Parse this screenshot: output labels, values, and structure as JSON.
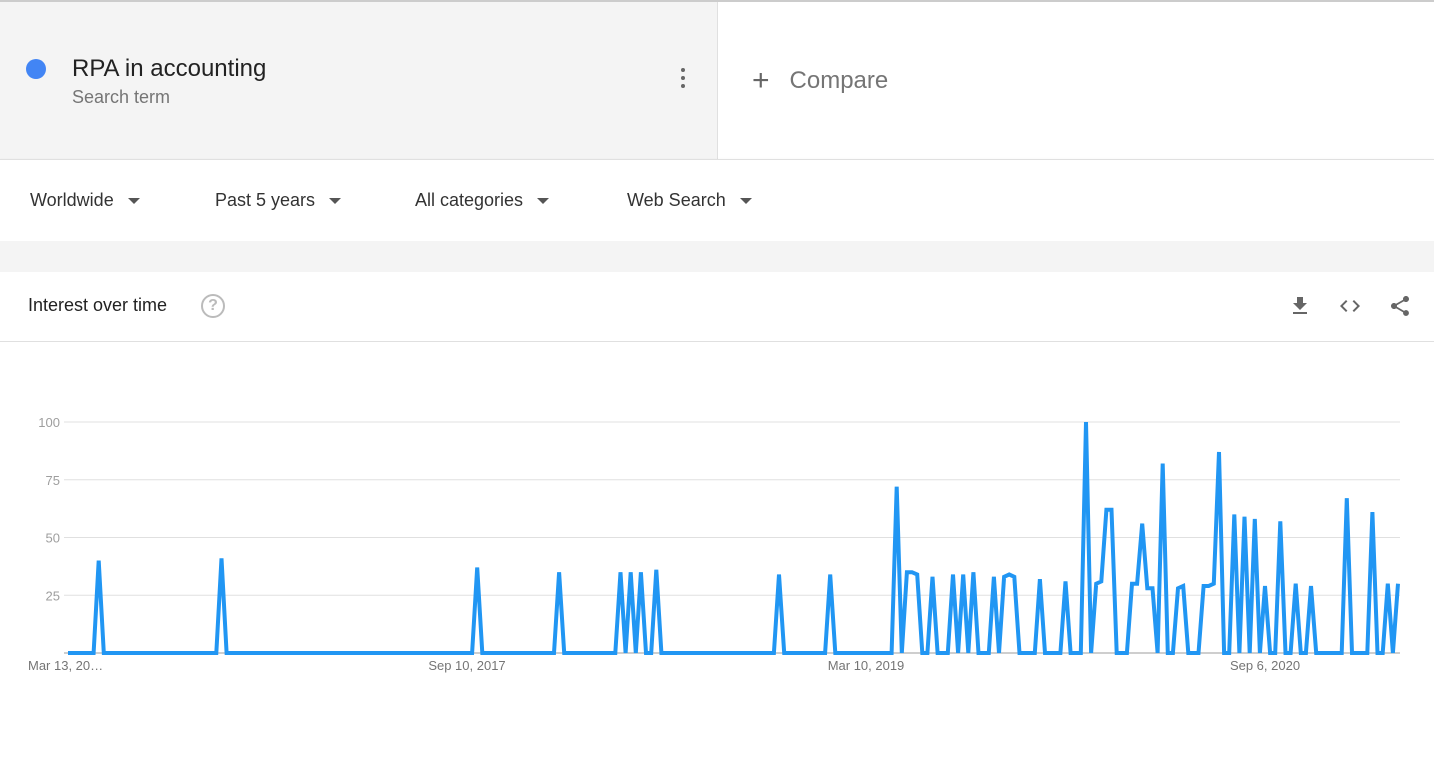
{
  "search_term": {
    "name": "RPA in accounting",
    "subtitle": "Search term",
    "color": "#4285f4"
  },
  "compare": {
    "label": "Compare"
  },
  "filters": [
    {
      "label": "Worldwide"
    },
    {
      "label": "Past 5 years"
    },
    {
      "label": "All categories"
    },
    {
      "label": "Web Search"
    }
  ],
  "card": {
    "title": "Interest over time",
    "help": "?",
    "icons": [
      "download-icon",
      "embed-icon",
      "share-icon"
    ]
  },
  "chart_data": {
    "type": "line",
    "line_color": "#2196f3",
    "grid": true,
    "ylim": [
      0,
      100
    ],
    "y_ticks": [
      25,
      50,
      75,
      100
    ],
    "x_tick_labels": [
      "Mar 13, 20…",
      "Sep 10, 2017",
      "Mar 10, 2019",
      "Sep 6, 2020"
    ],
    "frequency": "weekly",
    "series": [
      {
        "name": "RPA in accounting",
        "values": [
          0,
          0,
          0,
          0,
          0,
          0,
          40,
          0,
          0,
          0,
          0,
          0,
          0,
          0,
          0,
          0,
          0,
          0,
          0,
          0,
          0,
          0,
          0,
          0,
          0,
          0,
          0,
          0,
          0,
          0,
          41,
          0,
          0,
          0,
          0,
          0,
          0,
          0,
          0,
          0,
          0,
          0,
          0,
          0,
          0,
          0,
          0,
          0,
          0,
          0,
          0,
          0,
          0,
          0,
          0,
          0,
          0,
          0,
          0,
          0,
          0,
          0,
          0,
          0,
          0,
          0,
          0,
          0,
          0,
          0,
          0,
          0,
          0,
          0,
          0,
          0,
          0,
          0,
          0,
          0,
          37,
          0,
          0,
          0,
          0,
          0,
          0,
          0,
          0,
          0,
          0,
          0,
          0,
          0,
          0,
          0,
          35,
          0,
          0,
          0,
          0,
          0,
          0,
          0,
          0,
          0,
          0,
          0,
          35,
          0,
          35,
          0,
          35,
          0,
          0,
          36,
          0,
          0,
          0,
          0,
          0,
          0,
          0,
          0,
          0,
          0,
          0,
          0,
          0,
          0,
          0,
          0,
          0,
          0,
          0,
          0,
          0,
          0,
          0,
          34,
          0,
          0,
          0,
          0,
          0,
          0,
          0,
          0,
          0,
          34,
          0,
          0,
          0,
          0,
          0,
          0,
          0,
          0,
          0,
          0,
          0,
          0,
          72,
          0,
          35,
          35,
          34,
          0,
          0,
          33,
          0,
          0,
          0,
          34,
          0,
          34,
          0,
          35,
          0,
          0,
          0,
          33,
          0,
          33,
          34,
          33,
          0,
          0,
          0,
          0,
          32,
          0,
          0,
          0,
          0,
          31,
          0,
          0,
          0,
          100,
          0,
          30,
          31,
          62,
          62,
          0,
          0,
          0,
          30,
          30,
          56,
          28,
          28,
          0,
          82,
          0,
          0,
          28,
          29,
          0,
          0,
          0,
          29,
          29,
          30,
          87,
          0,
          0,
          60,
          0,
          59,
          0,
          58,
          0,
          29,
          0,
          0,
          57,
          0,
          0,
          30,
          0,
          0,
          29,
          0,
          0,
          0,
          0,
          0,
          0,
          67,
          0,
          0,
          0,
          0,
          61,
          0,
          0,
          30,
          0,
          30
        ]
      }
    ]
  }
}
